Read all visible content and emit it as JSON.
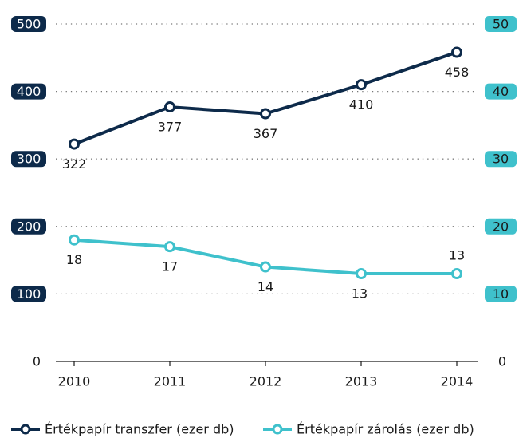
{
  "chart_data": {
    "type": "line",
    "categories": [
      "2010",
      "2011",
      "2012",
      "2013",
      "2014"
    ],
    "series": [
      {
        "name": "Értékpapír transzfer (ezer db)",
        "color": "#0d2a4a",
        "values": [
          322,
          377,
          367,
          410,
          458
        ]
      },
      {
        "name": "Értékpapír zárolás (ezer db)",
        "color": "#3fc1cc",
        "values": [
          18,
          17,
          14,
          13,
          13
        ],
        "axis": "y2"
      }
    ],
    "ylim": [
      0,
      500
    ],
    "yticks": [
      0,
      100,
      200,
      300,
      400,
      500
    ],
    "y2lim": [
      0,
      50
    ],
    "y2ticks": [
      0,
      10,
      20,
      30,
      40,
      50
    ],
    "grid": true
  }
}
